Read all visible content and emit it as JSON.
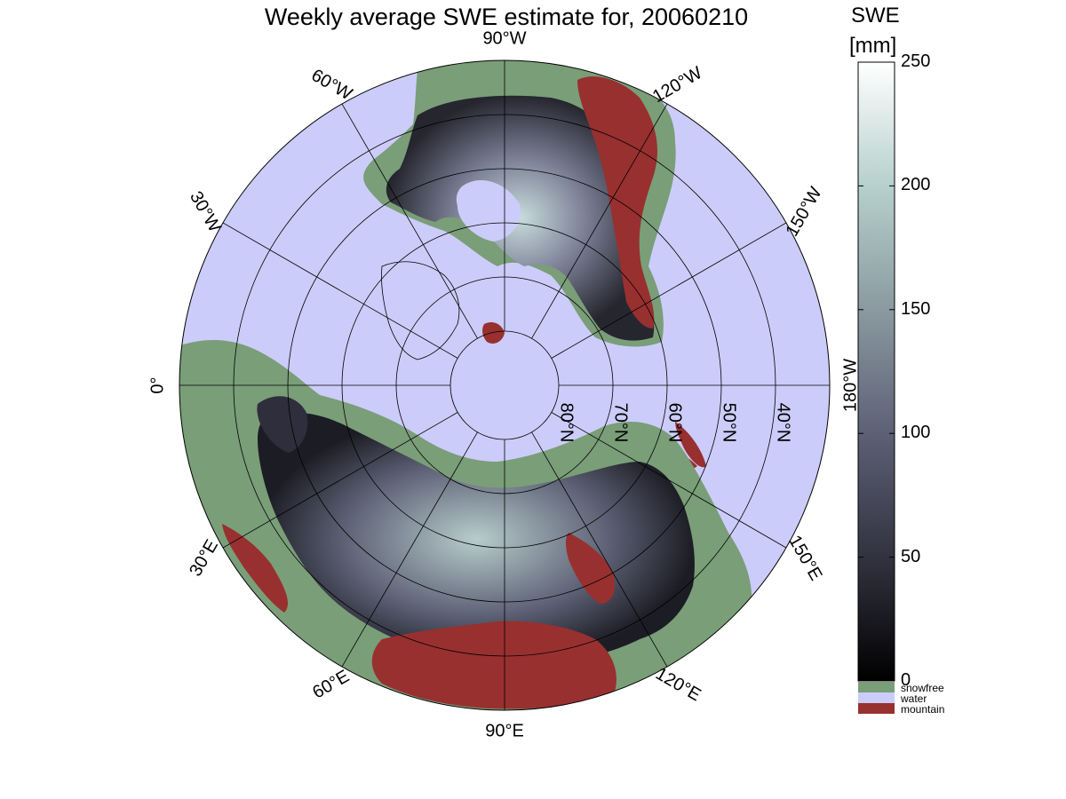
{
  "title": "Weekly average SWE estimate for, 20060210",
  "colorbar": {
    "title_line1": "SWE",
    "title_line2": "[mm]",
    "ticks": [
      "0",
      "50",
      "100",
      "150",
      "200",
      "250"
    ],
    "tick_values": [
      0,
      50,
      100,
      150,
      200,
      250
    ],
    "range": [
      0,
      250
    ],
    "colors": [
      "#0a0a0f",
      "#3c3c4e",
      "#6e7288",
      "#8fa3a6",
      "#bcd6d2",
      "#f6fafa"
    ],
    "categories": [
      {
        "label": "snowfree",
        "color": "#7a9e78"
      },
      {
        "label": "water",
        "color": "#ccccfa"
      },
      {
        "label": "mountain",
        "color": "#983030"
      }
    ]
  },
  "map": {
    "projection": "north polar stereographic",
    "longitude_labels": [
      {
        "text": "90°W",
        "lon": 270
      },
      {
        "text": "120°W",
        "lon": 240
      },
      {
        "text": "150°W",
        "lon": 210
      },
      {
        "text": "180°W",
        "lon": 180
      },
      {
        "text": "150°E",
        "lon": 150
      },
      {
        "text": "120°E",
        "lon": 120
      },
      {
        "text": "90°E",
        "lon": 90
      },
      {
        "text": "60°E",
        "lon": 60
      },
      {
        "text": "30°E",
        "lon": 30
      },
      {
        "text": "0°",
        "lon": 0
      },
      {
        "text": "30°W",
        "lon": 330
      },
      {
        "text": "60°W",
        "lon": 300
      }
    ],
    "latitude_labels": [
      "80°N",
      "70°N",
      "60°N",
      "50°N",
      "40°N"
    ],
    "latitude_circles": [
      80,
      70,
      60,
      50,
      40
    ],
    "outer_latitude": 30,
    "colors": {
      "water": "#ccccfa",
      "snowfree": "#7a9e78",
      "mountain": "#983030",
      "snow_dark": "#2a2a36",
      "snow_mid": "#6a6e84",
      "snow_light": "#c8dcdc"
    }
  }
}
